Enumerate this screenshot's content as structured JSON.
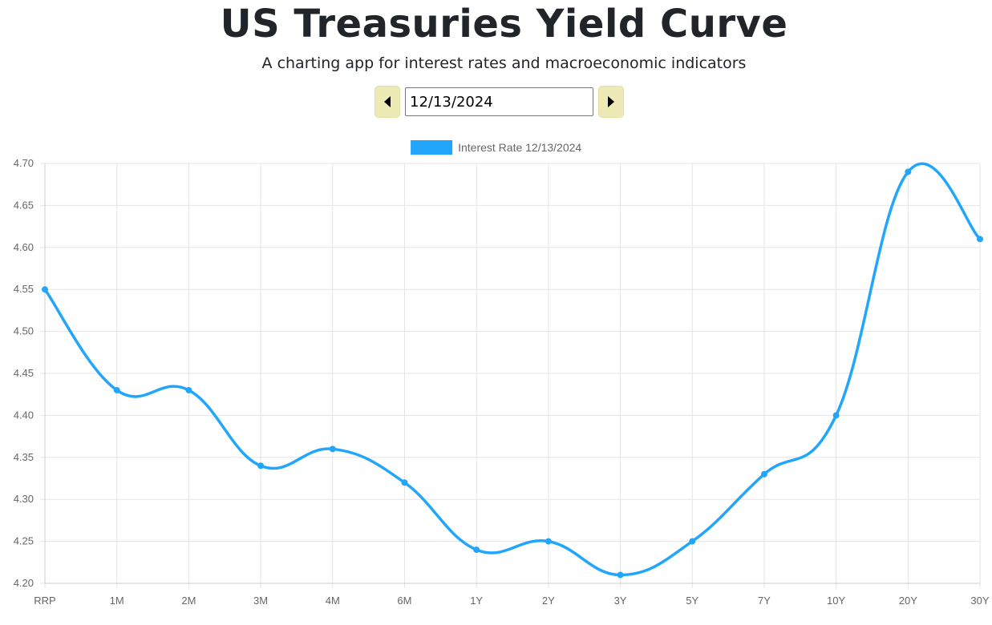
{
  "header": {
    "title": "US Treasuries Yield Curve",
    "subtitle": "A charting app for interest rates and macroeconomic indicators"
  },
  "controls": {
    "date_value": "12/13/2024",
    "prev_icon": "caret-left-icon",
    "next_icon": "caret-right-icon"
  },
  "colors": {
    "series": "#22a6fb",
    "button_bg": "#eeeab6",
    "grid": "#e5e5e5",
    "tick_text": "#666666"
  },
  "chart_data": {
    "type": "line",
    "categories": [
      "RRP",
      "1M",
      "2M",
      "3M",
      "4M",
      "6M",
      "1Y",
      "2Y",
      "3Y",
      "5Y",
      "7Y",
      "10Y",
      "20Y",
      "30Y"
    ],
    "series": [
      {
        "name": "Interest Rate 12/13/2024",
        "values": [
          4.55,
          4.43,
          4.43,
          4.34,
          4.36,
          4.32,
          4.24,
          4.25,
          4.21,
          4.25,
          4.33,
          4.4,
          4.69,
          4.61
        ]
      }
    ],
    "ylim": [
      4.2,
      4.7
    ],
    "yticks": [
      "4.20",
      "4.25",
      "4.30",
      "4.35",
      "4.40",
      "4.45",
      "4.50",
      "4.55",
      "4.60",
      "4.65",
      "4.70"
    ],
    "grid": true,
    "legend": "top-center",
    "smooth": true
  }
}
